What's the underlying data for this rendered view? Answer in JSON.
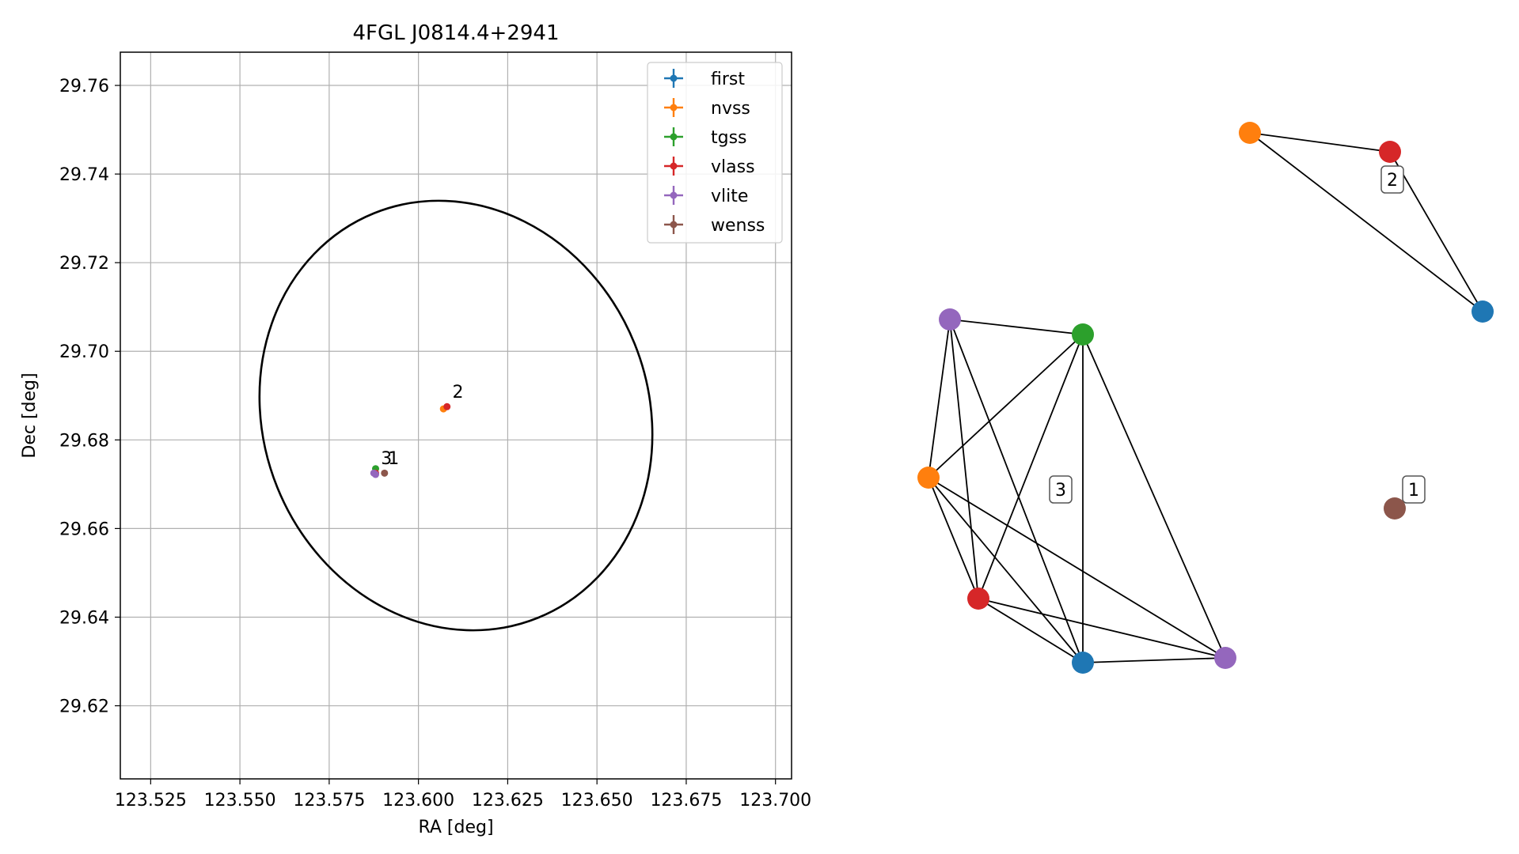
{
  "chart_data": [
    {
      "type": "scatter",
      "title": "4FGL J0814.4+2941",
      "xlabel": "RA [deg]",
      "ylabel": "Dec [deg]",
      "xlim": [
        123.5165,
        123.7045
      ],
      "ylim": [
        29.6035,
        29.7675
      ],
      "grid": true,
      "legend_placement": "upper right",
      "x_ticks": [
        "123.525",
        "123.550",
        "123.575",
        "123.600",
        "123.625",
        "123.650",
        "123.675",
        "123.700"
      ],
      "y_ticks": [
        "29.62",
        "29.64",
        "29.66",
        "29.68",
        "29.70",
        "29.72",
        "29.74",
        "29.76"
      ],
      "ellipse": {
        "center": [
          123.6105,
          29.6855
        ],
        "x_extent": [
          123.5525,
          123.6685
        ],
        "y_extent": [
          29.6365,
          29.735
        ],
        "color": "#000000"
      },
      "series": [
        {
          "name": "first",
          "color": "#1f77b4",
          "x": [],
          "y": []
        },
        {
          "name": "nvss",
          "color": "#ff7f0e",
          "x": [
            123.607
          ],
          "y": [
            29.687
          ]
        },
        {
          "name": "tgss",
          "color": "#2ca02c",
          "x": [
            123.588
          ],
          "y": [
            29.6735
          ]
        },
        {
          "name": "vlass",
          "color": "#d62728",
          "x": [
            123.608,
            123.588
          ],
          "y": [
            29.6875,
            29.6725
          ]
        },
        {
          "name": "vlite",
          "color": "#9467bd",
          "x": [
            123.588,
            123.5875
          ],
          "y": [
            29.6722,
            29.6725
          ]
        },
        {
          "name": "wenss",
          "color": "#8c564b",
          "x": [
            123.5905
          ],
          "y": [
            29.6725
          ]
        }
      ],
      "annotations": [
        {
          "text": "2",
          "x": 123.6095,
          "y": 29.6895
        },
        {
          "text": "3",
          "x": 123.5895,
          "y": 29.6745
        },
        {
          "text": "1",
          "x": 123.5915,
          "y": 29.6745
        }
      ]
    },
    {
      "type": "network",
      "nodes": [
        {
          "id": "a",
          "color": "#ff7f0e"
        },
        {
          "id": "b",
          "color": "#d62728"
        },
        {
          "id": "c",
          "color": "#1f77b4"
        },
        {
          "id": "d",
          "color": "#9467bd"
        },
        {
          "id": "e",
          "color": "#2ca02c"
        },
        {
          "id": "f",
          "color": "#ff7f0e"
        },
        {
          "id": "g",
          "color": "#d62728"
        },
        {
          "id": "h",
          "color": "#1f77b4"
        },
        {
          "id": "i",
          "color": "#9467bd"
        },
        {
          "id": "j",
          "color": "#8c564b"
        }
      ],
      "edges": [
        [
          "a",
          "b"
        ],
        [
          "a",
          "c"
        ],
        [
          "b",
          "c"
        ],
        [
          "d",
          "e"
        ],
        [
          "d",
          "f"
        ],
        [
          "d",
          "g"
        ],
        [
          "d",
          "h"
        ],
        [
          "e",
          "f"
        ],
        [
          "e",
          "g"
        ],
        [
          "e",
          "h"
        ],
        [
          "e",
          "i"
        ],
        [
          "f",
          "g"
        ],
        [
          "f",
          "h"
        ],
        [
          "f",
          "i"
        ],
        [
          "g",
          "h"
        ],
        [
          "g",
          "i"
        ],
        [
          "h",
          "i"
        ]
      ],
      "group_labels": [
        {
          "text": "2",
          "group": [
            "a",
            "b",
            "c"
          ]
        },
        {
          "text": "3",
          "group": [
            "d",
            "e",
            "f",
            "g",
            "h",
            "i"
          ]
        },
        {
          "text": "1",
          "group": [
            "j"
          ]
        }
      ]
    }
  ]
}
